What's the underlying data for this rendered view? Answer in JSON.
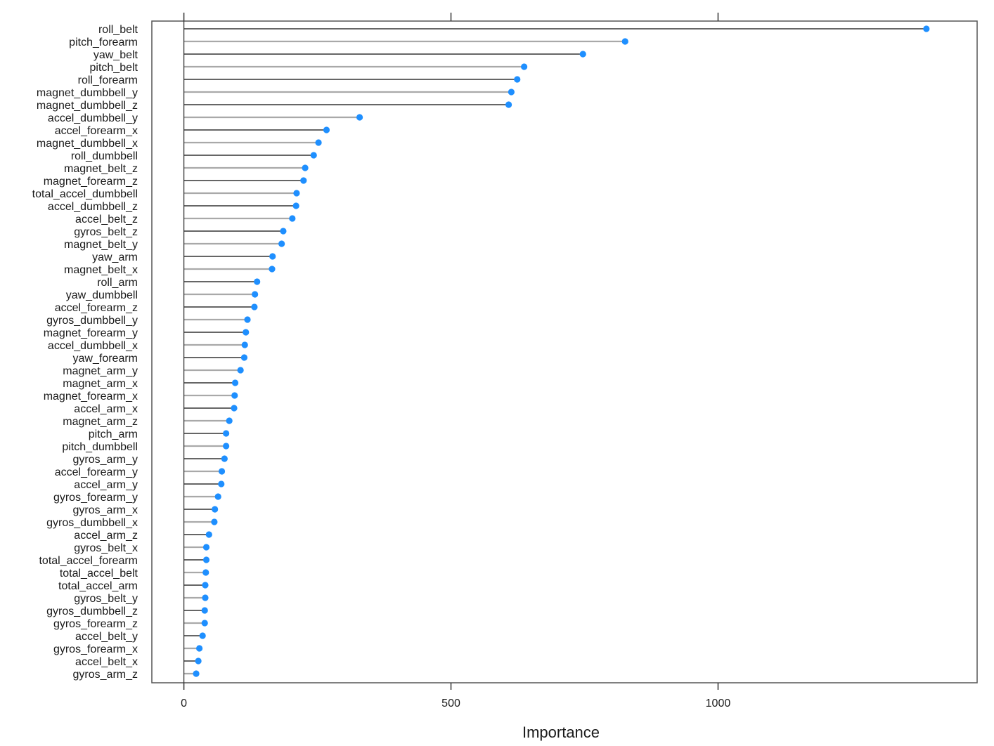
{
  "chart_data": {
    "type": "dot",
    "title": "",
    "xlabel": "Importance",
    "ylabel": "",
    "xlim": [
      -60,
      1485
    ],
    "xticks": [
      0,
      500,
      1000
    ],
    "grid": false,
    "colors": {
      "point": "#1e8fff",
      "line_dark": "#333333",
      "line_light": "#a9a9a9",
      "frame": "#555555"
    },
    "categories": [
      "roll_belt",
      "pitch_forearm",
      "yaw_belt",
      "pitch_belt",
      "roll_forearm",
      "magnet_dumbbell_y",
      "magnet_dumbbell_z",
      "accel_dumbbell_y",
      "accel_forearm_x",
      "magnet_dumbbell_x",
      "roll_dumbbell",
      "magnet_belt_z",
      "magnet_forearm_z",
      "total_accel_dumbbell",
      "accel_dumbbell_z",
      "accel_belt_z",
      "gyros_belt_z",
      "magnet_belt_y",
      "yaw_arm",
      "magnet_belt_x",
      "roll_arm",
      "yaw_dumbbell",
      "accel_forearm_z",
      "gyros_dumbbell_y",
      "magnet_forearm_y",
      "accel_dumbbell_x",
      "yaw_forearm",
      "magnet_arm_y",
      "magnet_arm_x",
      "magnet_forearm_x",
      "accel_arm_x",
      "magnet_arm_z",
      "pitch_arm",
      "pitch_dumbbell",
      "gyros_arm_y",
      "accel_forearm_y",
      "accel_arm_y",
      "gyros_forearm_y",
      "gyros_arm_x",
      "gyros_dumbbell_x",
      "accel_arm_z",
      "gyros_belt_x",
      "total_accel_forearm",
      "total_accel_belt",
      "total_accel_arm",
      "gyros_belt_y",
      "gyros_dumbbell_z",
      "gyros_forearm_z",
      "accel_belt_y",
      "gyros_forearm_x",
      "accel_belt_x",
      "gyros_arm_z"
    ],
    "values": [
      1390,
      826,
      747,
      637,
      624,
      613,
      608,
      329,
      267,
      252,
      243,
      227,
      224,
      211,
      210,
      203,
      186,
      183,
      166,
      165,
      137,
      133,
      132,
      119,
      116,
      114,
      113,
      106,
      96,
      95,
      94,
      85,
      79,
      79,
      76,
      71,
      70,
      64,
      58,
      57,
      47,
      42,
      42,
      41,
      40,
      40,
      39,
      39,
      35,
      29,
      27,
      23
    ]
  }
}
